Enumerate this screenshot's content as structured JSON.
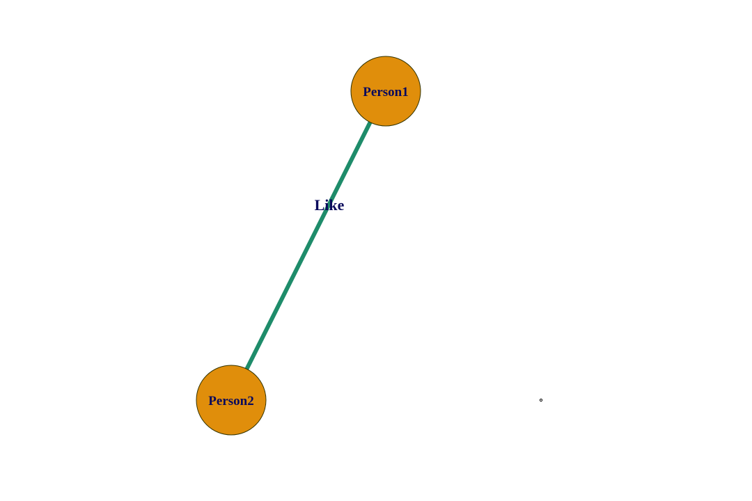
{
  "graph": {
    "nodes": [
      {
        "id": "person1",
        "label": "Person1"
      },
      {
        "id": "person2",
        "label": "Person2"
      }
    ],
    "edges": [
      {
        "id": "like",
        "from": "person1",
        "to": "person2",
        "label": "Like"
      }
    ]
  },
  "colors": {
    "node_fill": "#e08e0b",
    "node_stroke": "#333300",
    "edge": "#1e8c6a",
    "label_text": "#0a0a5c",
    "stray_dot": "#000000"
  }
}
